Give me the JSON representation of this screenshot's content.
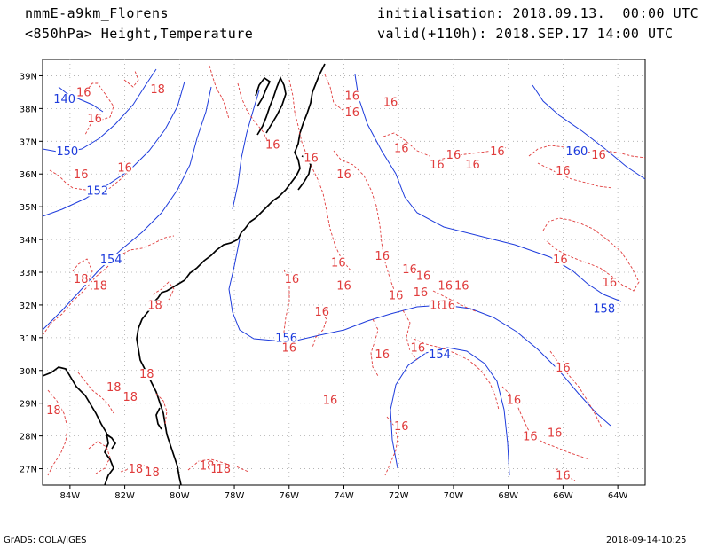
{
  "header": {
    "model": "nmmE-a9km_Florens",
    "field": "<850hPa> Height,Temperature",
    "initialisation": "initialisation: 2018.09.13.  00:00 UTC",
    "valid": "valid(+110h): 2018.SEP.17 14:00 UTC"
  },
  "footer": {
    "software": "GrADS: COLA/IGES",
    "timestamp": "2018-09-14-10:25"
  },
  "map": {
    "lat_range": [
      26.5,
      39.5
    ],
    "lon_range": [
      -85,
      -63
    ],
    "lat_labels": [
      "39N",
      "38N",
      "37N",
      "36N",
      "35N",
      "34N",
      "33N",
      "32N",
      "31N",
      "30N",
      "29N",
      "28N",
      "27N"
    ],
    "lon_labels": [
      "84W",
      "82W",
      "80W",
      "78W",
      "76W",
      "74W",
      "72W",
      "70W",
      "68W",
      "66W",
      "64W"
    ],
    "grid": true,
    "colors": {
      "height": "#1e3cdc",
      "temperature": "#e03c3c",
      "coast": "#000000",
      "grid": "#aaaaaa"
    },
    "height_labels": [
      {
        "text": "140",
        "lon": -84.2,
        "lat": 38.2
      },
      {
        "text": "150",
        "lon": -84.1,
        "lat": 36.6
      },
      {
        "text": "152",
        "lon": -83.0,
        "lat": 35.4
      },
      {
        "text": "154",
        "lon": -82.5,
        "lat": 33.3
      },
      {
        "text": "156",
        "lon": -76.1,
        "lat": 30.9
      },
      {
        "text": "154",
        "lon": -70.5,
        "lat": 30.4
      },
      {
        "text": "158",
        "lon": -64.5,
        "lat": 31.8
      },
      {
        "text": "160",
        "lon": -65.5,
        "lat": 36.6
      }
    ],
    "temp_labels": [
      {
        "text": "16",
        "lon": -83.5,
        "lat": 38.4
      },
      {
        "text": "18",
        "lon": -80.8,
        "lat": 38.5
      },
      {
        "text": "16",
        "lon": -83.1,
        "lat": 37.6
      },
      {
        "text": "16",
        "lon": -83.6,
        "lat": 35.9
      },
      {
        "text": "16",
        "lon": -82.0,
        "lat": 36.1
      },
      {
        "text": "16",
        "lon": -76.6,
        "lat": 36.8
      },
      {
        "text": "16",
        "lon": -75.2,
        "lat": 36.4
      },
      {
        "text": "16",
        "lon": -73.7,
        "lat": 38.3
      },
      {
        "text": "16",
        "lon": -73.7,
        "lat": 37.8
      },
      {
        "text": "16",
        "lon": -72.3,
        "lat": 38.1
      },
      {
        "text": "16",
        "lon": -74.0,
        "lat": 35.9
      },
      {
        "text": "16",
        "lon": -71.9,
        "lat": 36.7
      },
      {
        "text": "16",
        "lon": -70.6,
        "lat": 36.2
      },
      {
        "text": "16",
        "lon": -70.0,
        "lat": 36.5
      },
      {
        "text": "16",
        "lon": -69.3,
        "lat": 36.2
      },
      {
        "text": "16",
        "lon": -68.4,
        "lat": 36.6
      },
      {
        "text": "16",
        "lon": -66.0,
        "lat": 36.0
      },
      {
        "text": "16",
        "lon": -64.7,
        "lat": 36.5
      },
      {
        "text": "16",
        "lon": -83.0,
        "lat": 32.5
      },
      {
        "text": "18",
        "lon": -83.6,
        "lat": 32.7
      },
      {
        "text": "18",
        "lon": -82.9,
        "lat": 32.5
      },
      {
        "text": "18",
        "lon": -80.9,
        "lat": 31.9
      },
      {
        "text": "16",
        "lon": -75.9,
        "lat": 32.7
      },
      {
        "text": "16",
        "lon": -74.2,
        "lat": 33.2
      },
      {
        "text": "16",
        "lon": -74.0,
        "lat": 32.5
      },
      {
        "text": "16",
        "lon": -72.6,
        "lat": 33.4
      },
      {
        "text": "16",
        "lon": -71.6,
        "lat": 33.0
      },
      {
        "text": "16",
        "lon": -71.1,
        "lat": 32.8
      },
      {
        "text": "16",
        "lon": -70.3,
        "lat": 32.5
      },
      {
        "text": "16",
        "lon": -69.7,
        "lat": 32.5
      },
      {
        "text": "16",
        "lon": -66.1,
        "lat": 33.3
      },
      {
        "text": "16",
        "lon": -64.3,
        "lat": 32.6
      },
      {
        "text": "16",
        "lon": -72.1,
        "lat": 32.2
      },
      {
        "text": "16",
        "lon": -71.2,
        "lat": 32.3
      },
      {
        "text": "16",
        "lon": -70.6,
        "lat": 31.9
      },
      {
        "text": "16",
        "lon": -70.2,
        "lat": 31.9
      },
      {
        "text": "16",
        "lon": -74.8,
        "lat": 31.7
      },
      {
        "text": "16",
        "lon": -76.0,
        "lat": 30.6
      },
      {
        "text": "16",
        "lon": -72.6,
        "lat": 30.4
      },
      {
        "text": "16",
        "lon": -71.3,
        "lat": 30.6
      },
      {
        "text": "16",
        "lon": -66.0,
        "lat": 30.0
      },
      {
        "text": "16",
        "lon": -74.5,
        "lat": 29.0
      },
      {
        "text": "16",
        "lon": -67.8,
        "lat": 29.0
      },
      {
        "text": "16",
        "lon": -71.9,
        "lat": 28.2
      },
      {
        "text": "16",
        "lon": -67.2,
        "lat": 27.9
      },
      {
        "text": "16",
        "lon": -66.3,
        "lat": 28.0
      },
      {
        "text": "16",
        "lon": -66.0,
        "lat": 26.7
      },
      {
        "text": "18",
        "lon": -81.2,
        "lat": 29.8
      },
      {
        "text": "18",
        "lon": -82.4,
        "lat": 29.4
      },
      {
        "text": "18",
        "lon": -81.8,
        "lat": 29.1
      },
      {
        "text": "18",
        "lon": -84.6,
        "lat": 28.7
      },
      {
        "text": "18",
        "lon": -81.6,
        "lat": 26.9
      },
      {
        "text": "18",
        "lon": -79.0,
        "lat": 27.0
      },
      {
        "text": "18",
        "lon": -78.6,
        "lat": 26.9
      },
      {
        "text": "18",
        "lon": -78.4,
        "lat": 26.9
      },
      {
        "text": "18",
        "lon": -81.0,
        "lat": 26.8
      }
    ]
  }
}
